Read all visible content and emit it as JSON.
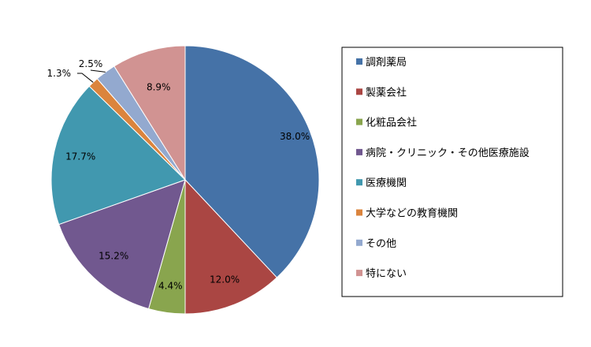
{
  "chart_data": {
    "type": "pie",
    "categories": [
      "調剤薬局",
      "製薬会社",
      "化粧品会社",
      "病院・クリニック・その他医療施設",
      "医療機関",
      "大学などの教育機関",
      "その他",
      "特にない"
    ],
    "values": [
      38.0,
      12.0,
      4.4,
      15.2,
      17.7,
      1.3,
      2.5,
      8.9
    ],
    "labels": [
      "38.0%",
      "12.0%",
      "4.4%",
      "15.2%",
      "17.7%",
      "1.3%",
      "2.5%",
      "8.9%"
    ],
    "colors": [
      "#4572A7",
      "#AA4643",
      "#89A54E",
      "#71588F",
      "#4198AF",
      "#DB843D",
      "#93A9CF",
      "#D19392"
    ],
    "legend_position": "right",
    "start_angle": "12 o'clock",
    "direction": "clockwise"
  }
}
